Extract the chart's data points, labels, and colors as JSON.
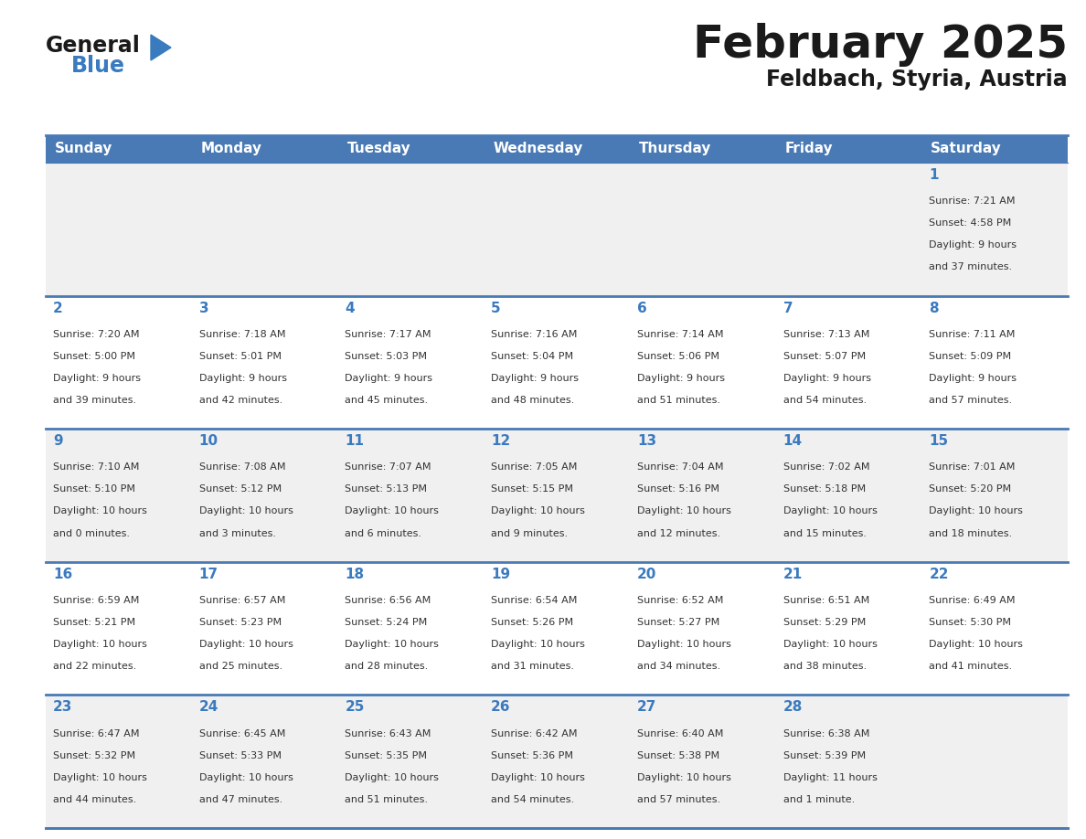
{
  "title": "February 2025",
  "subtitle": "Feldbach, Styria, Austria",
  "header_bg": "#4a7ab5",
  "header_text_color": "#ffffff",
  "row_bg_even": "#f0f0f0",
  "row_bg_odd": "#ffffff",
  "border_color": "#4a7ab5",
  "day_headers": [
    "Sunday",
    "Monday",
    "Tuesday",
    "Wednesday",
    "Thursday",
    "Friday",
    "Saturday"
  ],
  "days": [
    {
      "day": 1,
      "col": 6,
      "row": 0,
      "sunrise": "7:21 AM",
      "sunset": "4:58 PM",
      "daylight": "9 hours and 37 minutes."
    },
    {
      "day": 2,
      "col": 0,
      "row": 1,
      "sunrise": "7:20 AM",
      "sunset": "5:00 PM",
      "daylight": "9 hours and 39 minutes."
    },
    {
      "day": 3,
      "col": 1,
      "row": 1,
      "sunrise": "7:18 AM",
      "sunset": "5:01 PM",
      "daylight": "9 hours and 42 minutes."
    },
    {
      "day": 4,
      "col": 2,
      "row": 1,
      "sunrise": "7:17 AM",
      "sunset": "5:03 PM",
      "daylight": "9 hours and 45 minutes."
    },
    {
      "day": 5,
      "col": 3,
      "row": 1,
      "sunrise": "7:16 AM",
      "sunset": "5:04 PM",
      "daylight": "9 hours and 48 minutes."
    },
    {
      "day": 6,
      "col": 4,
      "row": 1,
      "sunrise": "7:14 AM",
      "sunset": "5:06 PM",
      "daylight": "9 hours and 51 minutes."
    },
    {
      "day": 7,
      "col": 5,
      "row": 1,
      "sunrise": "7:13 AM",
      "sunset": "5:07 PM",
      "daylight": "9 hours and 54 minutes."
    },
    {
      "day": 8,
      "col": 6,
      "row": 1,
      "sunrise": "7:11 AM",
      "sunset": "5:09 PM",
      "daylight": "9 hours and 57 minutes."
    },
    {
      "day": 9,
      "col": 0,
      "row": 2,
      "sunrise": "7:10 AM",
      "sunset": "5:10 PM",
      "daylight": "10 hours and 0 minutes."
    },
    {
      "day": 10,
      "col": 1,
      "row": 2,
      "sunrise": "7:08 AM",
      "sunset": "5:12 PM",
      "daylight": "10 hours and 3 minutes."
    },
    {
      "day": 11,
      "col": 2,
      "row": 2,
      "sunrise": "7:07 AM",
      "sunset": "5:13 PM",
      "daylight": "10 hours and 6 minutes."
    },
    {
      "day": 12,
      "col": 3,
      "row": 2,
      "sunrise": "7:05 AM",
      "sunset": "5:15 PM",
      "daylight": "10 hours and 9 minutes."
    },
    {
      "day": 13,
      "col": 4,
      "row": 2,
      "sunrise": "7:04 AM",
      "sunset": "5:16 PM",
      "daylight": "10 hours and 12 minutes."
    },
    {
      "day": 14,
      "col": 5,
      "row": 2,
      "sunrise": "7:02 AM",
      "sunset": "5:18 PM",
      "daylight": "10 hours and 15 minutes."
    },
    {
      "day": 15,
      "col": 6,
      "row": 2,
      "sunrise": "7:01 AM",
      "sunset": "5:20 PM",
      "daylight": "10 hours and 18 minutes."
    },
    {
      "day": 16,
      "col": 0,
      "row": 3,
      "sunrise": "6:59 AM",
      "sunset": "5:21 PM",
      "daylight": "10 hours and 22 minutes."
    },
    {
      "day": 17,
      "col": 1,
      "row": 3,
      "sunrise": "6:57 AM",
      "sunset": "5:23 PM",
      "daylight": "10 hours and 25 minutes."
    },
    {
      "day": 18,
      "col": 2,
      "row": 3,
      "sunrise": "6:56 AM",
      "sunset": "5:24 PM",
      "daylight": "10 hours and 28 minutes."
    },
    {
      "day": 19,
      "col": 3,
      "row": 3,
      "sunrise": "6:54 AM",
      "sunset": "5:26 PM",
      "daylight": "10 hours and 31 minutes."
    },
    {
      "day": 20,
      "col": 4,
      "row": 3,
      "sunrise": "6:52 AM",
      "sunset": "5:27 PM",
      "daylight": "10 hours and 34 minutes."
    },
    {
      "day": 21,
      "col": 5,
      "row": 3,
      "sunrise": "6:51 AM",
      "sunset": "5:29 PM",
      "daylight": "10 hours and 38 minutes."
    },
    {
      "day": 22,
      "col": 6,
      "row": 3,
      "sunrise": "6:49 AM",
      "sunset": "5:30 PM",
      "daylight": "10 hours and 41 minutes."
    },
    {
      "day": 23,
      "col": 0,
      "row": 4,
      "sunrise": "6:47 AM",
      "sunset": "5:32 PM",
      "daylight": "10 hours and 44 minutes."
    },
    {
      "day": 24,
      "col": 1,
      "row": 4,
      "sunrise": "6:45 AM",
      "sunset": "5:33 PM",
      "daylight": "10 hours and 47 minutes."
    },
    {
      "day": 25,
      "col": 2,
      "row": 4,
      "sunrise": "6:43 AM",
      "sunset": "5:35 PM",
      "daylight": "10 hours and 51 minutes."
    },
    {
      "day": 26,
      "col": 3,
      "row": 4,
      "sunrise": "6:42 AM",
      "sunset": "5:36 PM",
      "daylight": "10 hours and 54 minutes."
    },
    {
      "day": 27,
      "col": 4,
      "row": 4,
      "sunrise": "6:40 AM",
      "sunset": "5:38 PM",
      "daylight": "10 hours and 57 minutes."
    },
    {
      "day": 28,
      "col": 5,
      "row": 4,
      "sunrise": "6:38 AM",
      "sunset": "5:39 PM",
      "daylight": "11 hours and 1 minute."
    }
  ],
  "num_rows": 5,
  "num_cols": 7,
  "title_fontsize": 36,
  "subtitle_fontsize": 17,
  "header_fontsize": 11,
  "day_num_fontsize": 11,
  "cell_text_fontsize": 8,
  "logo_color_general": "#1a1a1a",
  "logo_color_blue": "#3a7abf",
  "logo_triangle_color": "#3a7abf",
  "title_color": "#1a1a1a",
  "subtitle_color": "#1a1a1a",
  "cell_text_color": "#333333",
  "day_num_color": "#3a7abf"
}
